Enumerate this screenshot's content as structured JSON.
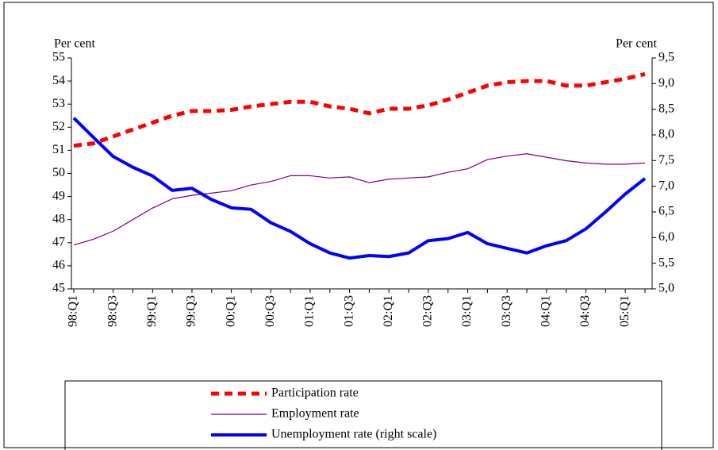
{
  "chart_data": {
    "type": "line",
    "ylabel": "Per cent",
    "y2label": "Per cent",
    "categories": [
      "98:Q1",
      null,
      "98:Q3",
      null,
      "99:Q1",
      null,
      "99:Q3",
      null,
      "00:Q1",
      null,
      "00:Q3",
      null,
      "01:Q1",
      null,
      "01:Q3",
      null,
      "02:Q1",
      null,
      "02:Q3",
      null,
      "03:Q1",
      null,
      "03:Q3",
      null,
      "04:Q1",
      null,
      "04:Q3",
      null,
      "05:Q1",
      null
    ],
    "ylim": [
      45,
      55
    ],
    "yticks": [
      45,
      46,
      47,
      48,
      49,
      50,
      51,
      52,
      53,
      54,
      55
    ],
    "y2lim": [
      5,
      9.5
    ],
    "y2ticks": [
      {
        "value": 5,
        "label": "5,0"
      },
      {
        "value": 5.5,
        "label": "5,5"
      },
      {
        "value": 6,
        "label": "6,0"
      },
      {
        "value": 6.5,
        "label": "6,5"
      },
      {
        "value": 7,
        "label": "7,0"
      },
      {
        "value": 7.5,
        "label": "7,5"
      },
      {
        "value": 8,
        "label": "8,0"
      },
      {
        "value": 8.5,
        "label": "8,5"
      },
      {
        "value": 9,
        "label": "9,0"
      },
      {
        "value": 9.5,
        "label": "9,5"
      }
    ],
    "series": [
      {
        "name": "Participation rate",
        "color": "#ff0000",
        "style": "dashed",
        "width": 5,
        "values": [
          51.2,
          51.3,
          51.6,
          51.9,
          52.2,
          52.5,
          52.7,
          52.7,
          52.75,
          52.9,
          53.0,
          53.1,
          53.1,
          52.9,
          52.8,
          52.6,
          52.8,
          52.8,
          52.95,
          53.2,
          53.5,
          53.8,
          53.95,
          54.0,
          54.0,
          53.8,
          53.8,
          53.95,
          54.1,
          54.3
        ]
      },
      {
        "name": "Employment rate",
        "color": "#800080",
        "style": "solid",
        "width": 1.2,
        "values": [
          46.9,
          47.15,
          47.5,
          48.0,
          48.5,
          48.9,
          49.05,
          49.15,
          49.25,
          49.5,
          49.65,
          49.9,
          49.9,
          49.8,
          49.85,
          49.6,
          49.75,
          49.8,
          49.85,
          50.05,
          50.2,
          50.6,
          50.75,
          50.85,
          50.7,
          50.55,
          50.45,
          50.4,
          50.4,
          50.45
        ]
      },
      {
        "name": "Unemployment rate (right scale)",
        "color": "#0000ff",
        "style": "solid",
        "width": 4,
        "axis": "y2",
        "values": [
          8.33,
          7.95,
          7.58,
          7.37,
          7.2,
          6.92,
          6.96,
          6.74,
          6.58,
          6.55,
          6.29,
          6.12,
          5.88,
          5.7,
          5.6,
          5.65,
          5.63,
          5.7,
          5.94,
          5.98,
          6.1,
          5.88,
          5.79,
          5.7,
          5.84,
          5.94,
          6.17,
          6.5,
          6.85,
          7.15
        ]
      }
    ]
  }
}
